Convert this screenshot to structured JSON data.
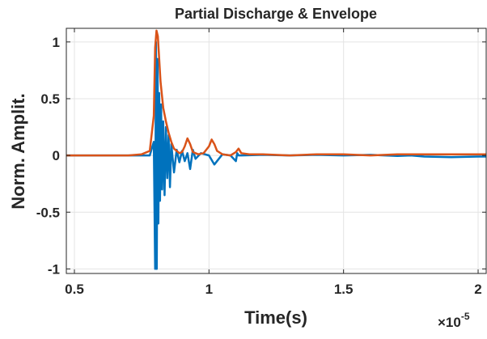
{
  "chart_data": {
    "type": "line",
    "title": "Partial Discharge & Envelope",
    "xlabel": "Time(s)",
    "ylabel": "Norm. Amplit.",
    "x_exponent_label": "×10",
    "x_exponent_power": "-5",
    "xlim": [
      0.47,
      2.03
    ],
    "ylim": [
      -1.04,
      1.12
    ],
    "x_unit_scale": "1e-5",
    "xticks": [
      0.5,
      1,
      1.5,
      2
    ],
    "xtick_labels": [
      "0.5",
      "1",
      "1.5",
      "2"
    ],
    "yticks": [
      -1,
      -0.5,
      0,
      0.5,
      1
    ],
    "ytick_labels": [
      "-1",
      "-0.5",
      "0",
      "0.5",
      "1"
    ],
    "grid": true,
    "legend": "none",
    "series": [
      {
        "color": "#0072BD",
        "x": [
          0.47,
          0.75,
          0.78,
          0.795,
          0.8,
          0.803,
          0.806,
          0.809,
          0.812,
          0.815,
          0.818,
          0.822,
          0.826,
          0.83,
          0.835,
          0.84,
          0.845,
          0.85,
          0.855,
          0.86,
          0.87,
          0.88,
          0.89,
          0.9,
          0.91,
          0.92,
          0.93,
          0.94,
          0.95,
          0.97,
          1.0,
          1.02,
          1.05,
          1.08,
          1.1,
          1.105,
          1.11,
          1.12,
          1.2,
          1.3,
          1.4,
          1.5,
          1.6,
          1.7,
          1.75,
          1.8,
          1.9,
          2.0,
          2.03
        ],
        "y": [
          0.0,
          0.0,
          0.0,
          0.12,
          -1.0,
          1.0,
          -1.0,
          0.85,
          -0.6,
          0.55,
          -0.4,
          0.45,
          -0.3,
          0.3,
          -0.35,
          0.25,
          -0.2,
          0.18,
          -0.28,
          0.1,
          -0.15,
          0.05,
          -0.06,
          0.04,
          -0.05,
          0.02,
          -0.12,
          0.05,
          -0.03,
          0.02,
          0.0,
          -0.08,
          0.01,
          0.0,
          -0.05,
          0.02,
          0.0,
          0.0,
          0.005,
          0.0,
          0.005,
          0.0,
          0.005,
          -0.005,
          0.0,
          -0.01,
          -0.015,
          -0.01,
          -0.01
        ]
      },
      {
        "color": "#D95319",
        "x": [
          0.47,
          0.7,
          0.75,
          0.78,
          0.795,
          0.8,
          0.805,
          0.81,
          0.815,
          0.82,
          0.83,
          0.84,
          0.85,
          0.86,
          0.87,
          0.88,
          0.89,
          0.9,
          0.91,
          0.92,
          0.93,
          0.94,
          0.96,
          0.98,
          1.0,
          1.01,
          1.02,
          1.03,
          1.05,
          1.08,
          1.1,
          1.11,
          1.12,
          1.15,
          1.2,
          1.3,
          1.4,
          1.5,
          1.6,
          1.7,
          1.8,
          1.9,
          2.0,
          2.03
        ],
        "y": [
          0.0,
          0.0,
          0.01,
          0.04,
          0.35,
          0.95,
          1.1,
          1.05,
          0.85,
          0.65,
          0.42,
          0.3,
          0.2,
          0.12,
          0.06,
          0.04,
          0.02,
          0.03,
          0.08,
          0.15,
          0.1,
          0.03,
          0.01,
          0.02,
          0.08,
          0.14,
          0.1,
          0.04,
          0.01,
          0.0,
          0.03,
          0.06,
          0.02,
          0.01,
          0.01,
          0.0,
          0.01,
          0.01,
          0.0,
          0.01,
          0.01,
          0.01,
          0.01,
          0.01
        ]
      }
    ]
  }
}
